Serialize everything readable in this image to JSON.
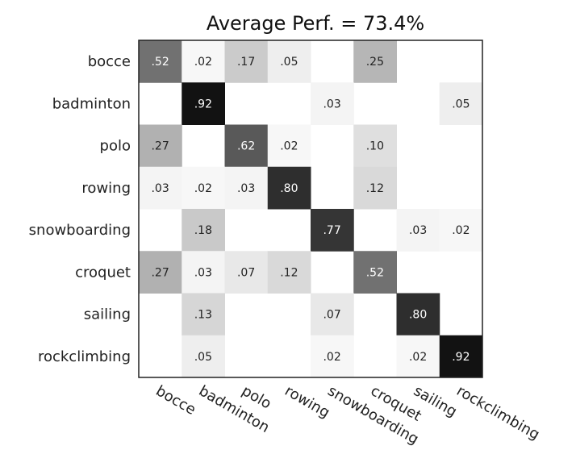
{
  "chart_data": {
    "type": "heatmap",
    "title": "Average Perf. = 73.4%",
    "rows": [
      "bocce",
      "badminton",
      "polo",
      "rowing",
      "snowboarding",
      "croquet",
      "sailing",
      "rockclimbing"
    ],
    "columns": [
      "bocce",
      "badminton",
      "polo",
      "rowing",
      "snowboarding",
      "croquet",
      "sailing",
      "rockclimbing"
    ],
    "values": [
      [
        0.52,
        0.02,
        0.17,
        0.05,
        null,
        0.25,
        null,
        null
      ],
      [
        null,
        0.92,
        null,
        null,
        0.03,
        null,
        null,
        0.05
      ],
      [
        0.27,
        null,
        0.62,
        0.02,
        null,
        0.1,
        null,
        null
      ],
      [
        0.03,
        0.02,
        0.03,
        0.8,
        null,
        0.12,
        null,
        null
      ],
      [
        null,
        0.18,
        null,
        null,
        0.77,
        null,
        0.03,
        0.02
      ],
      [
        0.27,
        0.03,
        0.07,
        0.12,
        null,
        0.52,
        null,
        null
      ],
      [
        null,
        0.13,
        null,
        null,
        0.07,
        null,
        0.8,
        null
      ],
      [
        null,
        0.05,
        null,
        null,
        0.02,
        null,
        0.02,
        0.92
      ]
    ],
    "labels": [
      [
        ".52",
        ".02",
        ".17",
        ".05",
        "",
        ".25",
        "",
        ""
      ],
      [
        "",
        ".92",
        "",
        "",
        ".03",
        "",
        "",
        ".05"
      ],
      [
        ".27",
        "",
        ".62",
        ".02",
        "",
        ".10",
        "",
        ""
      ],
      [
        ".03",
        ".02",
        ".03",
        ".80",
        "",
        ".12",
        "",
        ""
      ],
      [
        "",
        ".18",
        "",
        "",
        ".77",
        "",
        ".03",
        ".02"
      ],
      [
        ".27",
        ".03",
        ".07",
        ".12",
        "",
        ".52",
        "",
        ""
      ],
      [
        "",
        ".13",
        "",
        "",
        ".07",
        "",
        ".80",
        ""
      ],
      [
        "",
        ".05",
        "",
        "",
        ".02",
        "",
        ".02",
        ".92"
      ]
    ],
    "colormap": "grayscale (white = 0, black = 1)",
    "grid": false,
    "legend": "none"
  }
}
